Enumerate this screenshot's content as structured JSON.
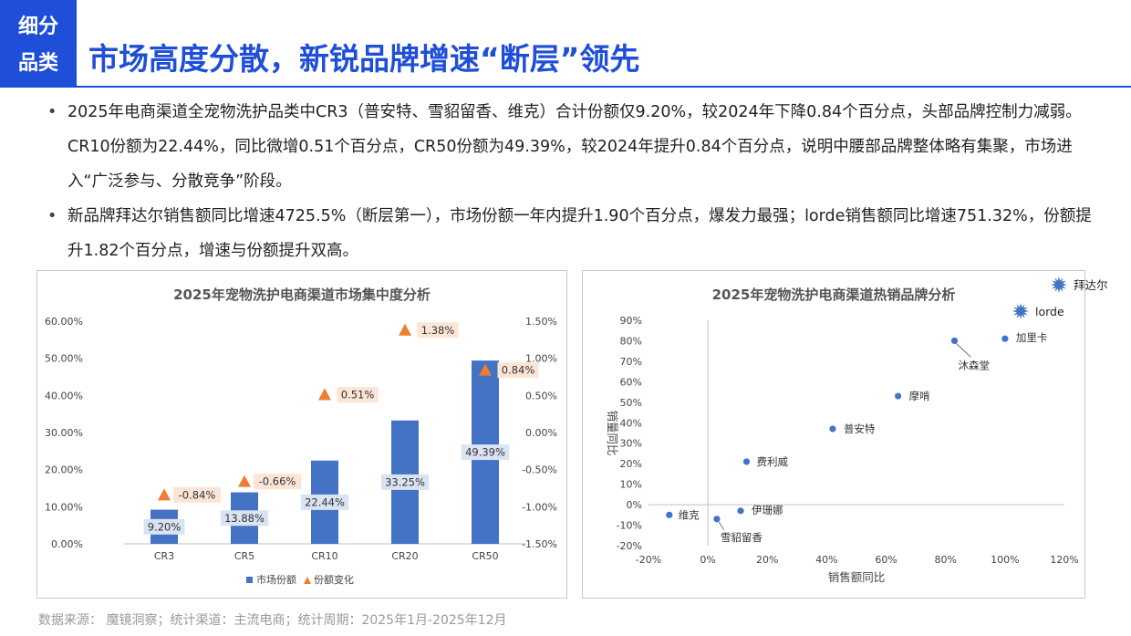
{
  "header": {
    "tag_line1": "细分",
    "tag_line2": "品类",
    "title": "市场高度分散，新锐品牌增速“断层”领先"
  },
  "bullets": [
    "2025年电商渠道全宠物洗护品类中CR3（普安特、雪貂留香、维克）合计份额仅9.20%，较2024年下降0.84个百分点，头部品牌控制力减弱。CR10份额为22.44%，同比微增0.51个百分点，CR50份额为49.39%，较2024年提升0.84个百分点，说明中腰部品牌整体略有集聚，市场进入“广泛参与、分散竞争”阶段。",
    "新品牌拜达尔销售额同比增速4725.5%（断层第一），市场份额一年内提升1.90个百分点，爆发力最强；lorde销售额同比增速751.32%，份额提升1.82个百分点，增速与份额提升双高。"
  ],
  "source": "数据来源： 魔镜洞察；统计渠道：主流电商；统计周期：2025年1月-2025年12月",
  "colors": {
    "accent": "#1f4ed8",
    "bar": "#4472c4",
    "triangle": "#ed7d31",
    "label_bg_blue": "#dae3f3",
    "label_bg_orange": "#fbe5d6"
  },
  "chart_data": [
    {
      "type": "bar",
      "title": "2025年宠物洗护电商渠道市场集中度分析",
      "categories": [
        "CR3",
        "CR5",
        "CR10",
        "CR20",
        "CR50"
      ],
      "series": [
        {
          "name": "市场份额",
          "axis": "left",
          "values": [
            9.2,
            13.88,
            22.44,
            33.25,
            49.39
          ],
          "labels": [
            "9.20%",
            "13.88%",
            "22.44%",
            "33.25%",
            "49.39%"
          ]
        },
        {
          "name": "份额变化",
          "axis": "right",
          "marker": "triangle",
          "values": [
            -0.84,
            -0.66,
            0.51,
            1.38,
            0.84
          ],
          "labels": [
            "-0.84%",
            "-0.66%",
            "0.51%",
            "1.38%",
            "0.84%"
          ]
        }
      ],
      "ylim_left": [
        0,
        60
      ],
      "yticks_left": [
        "0.00%",
        "10.00%",
        "20.00%",
        "30.00%",
        "40.00%",
        "50.00%",
        "60.00%"
      ],
      "ylim_right": [
        -1.5,
        1.5
      ],
      "yticks_right": [
        "-1.50%",
        "-1.00%",
        "-0.50%",
        "0.00%",
        "0.50%",
        "1.00%",
        "1.50%"
      ],
      "legend": "bottom"
    },
    {
      "type": "scatter",
      "title": "2025年宠物洗护电商渠道热销品牌分析",
      "xlabel": "销售额同比",
      "ylabel": "销量同比",
      "xlim": [
        -20,
        120
      ],
      "ylim": [
        -20,
        90
      ],
      "xticks": [
        "-20%",
        "0%",
        "20%",
        "40%",
        "60%",
        "80%",
        "100%",
        "120%"
      ],
      "yticks": [
        "-20%",
        "-10%",
        "0%",
        "10%",
        "20%",
        "30%",
        "40%",
        "50%",
        "60%",
        "70%",
        "80%",
        "90%"
      ],
      "points": [
        {
          "name": "维克",
          "x": -13,
          "y": -5
        },
        {
          "name": "雪貂留香",
          "x": 3,
          "y": -7
        },
        {
          "name": "伊珊娜",
          "x": 11,
          "y": -3
        },
        {
          "name": "费利威",
          "x": 13,
          "y": 21
        },
        {
          "name": "普安特",
          "x": 42,
          "y": 37
        },
        {
          "name": "摩啃",
          "x": 64,
          "y": 53
        },
        {
          "name": "沐森堂",
          "x": 83,
          "y": 80
        },
        {
          "name": "加里卡",
          "x": 100,
          "y": 81
        }
      ],
      "off_chart_markers": [
        {
          "name": "拜达尔",
          "icon": "burst-icon"
        },
        {
          "name": "lorde",
          "icon": "burst-icon"
        }
      ],
      "grid": false
    }
  ]
}
